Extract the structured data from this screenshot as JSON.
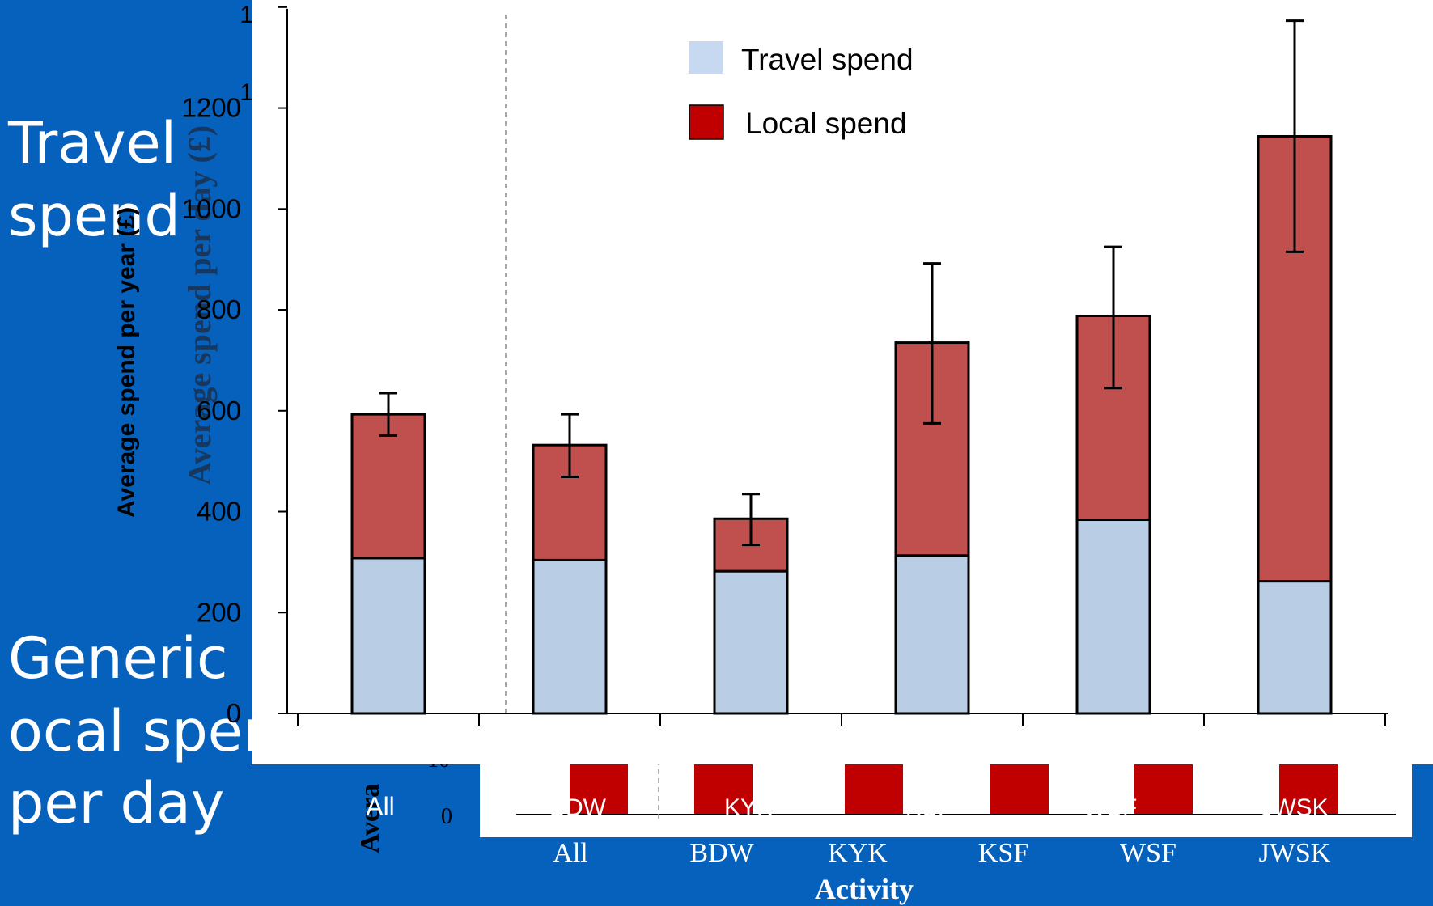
{
  "slide": {
    "label_top": "Travel\nspend",
    "label_bottom": "Generic\nocal spen\nper day"
  },
  "colors": {
    "slide_background": "#0561bc",
    "travel": "#b9cde5",
    "local": "#c0504d",
    "legend_local": "#c00000",
    "lower_bars": "#c00000"
  },
  "background_chart": {
    "ylabel_fragment": "Avera",
    "tick_fragments": [
      "10",
      "0"
    ],
    "category_fragments": [
      "All",
      "BDW",
      "KYK",
      "KSF",
      "WSF",
      "JWSK"
    ],
    "categories": [
      "All",
      "BDW",
      "KYK",
      "KSF",
      "WSF",
      "JWSK"
    ],
    "xlabel": "Activity"
  },
  "chart_data": {
    "type": "bar",
    "stacked": true,
    "categories": [
      "All",
      "BDW",
      "KYK",
      "KSF",
      "WSF",
      "JWSK"
    ],
    "category_labels_drawn": [
      "All",
      "BDW",
      "Activity",
      "KSF",
      "WSF",
      "JWSK"
    ],
    "series": [
      {
        "name": "Travel spend",
        "values": [
          308,
          304,
          282,
          313,
          384,
          262
        ]
      },
      {
        "name": "Local spend",
        "values": [
          285,
          228,
          104,
          422,
          404,
          882
        ]
      }
    ],
    "totals": [
      593,
      532,
      386,
      735,
      788,
      1144
    ],
    "error_bars": {
      "upper": [
        635,
        593,
        435,
        892,
        925,
        1373
      ],
      "lower": [
        551,
        469,
        334,
        575,
        645,
        915
      ]
    },
    "ylabel": "Average spend per day (£)",
    "ylabel_behind": "Average spend per year (£)",
    "xlabel": "Activity",
    "yticks": [
      0,
      200,
      400,
      600,
      800,
      1000,
      1200
    ],
    "ytick_labels_cut": [
      "1",
      "1"
    ],
    "ylim": [
      0,
      1400
    ],
    "legend_position": "top-center",
    "group_separator_after": "All",
    "grid": false
  }
}
